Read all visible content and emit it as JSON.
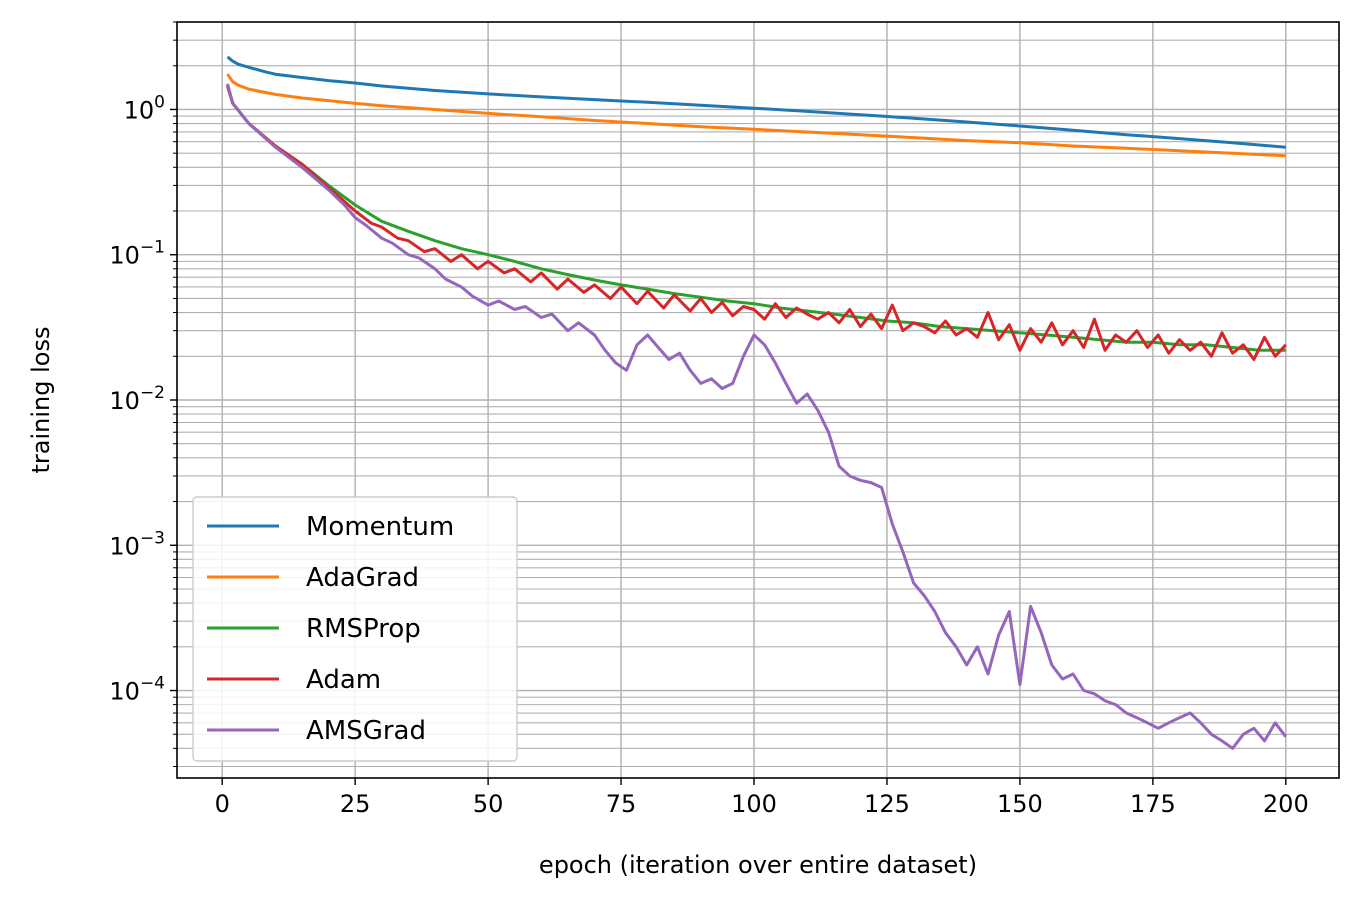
{
  "chart_data": {
    "type": "line",
    "title": "",
    "xlabel": "epoch (iteration over entire dataset)",
    "ylabel": "training loss",
    "xscale": "linear",
    "yscale": "log",
    "xlim": [
      -8.5,
      210
    ],
    "ylim": [
      2.5e-05,
      4.0
    ],
    "xticks": [
      0,
      25,
      50,
      75,
      100,
      125,
      150,
      175,
      200
    ],
    "xtick_labels": [
      "0",
      "25",
      "50",
      "75",
      "100",
      "125",
      "150",
      "175",
      "200"
    ],
    "yticks": [
      0.0001,
      0.001,
      0.01,
      0.1,
      1
    ],
    "ytick_labels": [
      {
        "base": "10",
        "exp": "−4"
      },
      {
        "base": "10",
        "exp": "−3"
      },
      {
        "base": "10",
        "exp": "−2"
      },
      {
        "base": "10",
        "exp": "−1"
      },
      {
        "base": "10",
        "exp": "0"
      }
    ],
    "grid": "major and minor",
    "legend_position": "lower-left",
    "series": [
      {
        "name": "Momentum",
        "color": "#1f77b4",
        "x": [
          1,
          2,
          3,
          5,
          8,
          10,
          15,
          20,
          25,
          30,
          40,
          50,
          60,
          70,
          80,
          90,
          100,
          110,
          120,
          130,
          140,
          150,
          160,
          170,
          180,
          190,
          200
        ],
        "y": [
          2.3,
          2.15,
          2.05,
          1.95,
          1.82,
          1.75,
          1.66,
          1.58,
          1.52,
          1.45,
          1.35,
          1.28,
          1.22,
          1.17,
          1.12,
          1.07,
          1.02,
          0.97,
          0.92,
          0.87,
          0.82,
          0.77,
          0.72,
          0.67,
          0.63,
          0.59,
          0.55
        ]
      },
      {
        "name": "AdaGrad",
        "color": "#ff7f0e",
        "x": [
          1,
          2,
          3,
          5,
          8,
          10,
          15,
          20,
          25,
          30,
          40,
          50,
          60,
          70,
          80,
          90,
          100,
          110,
          120,
          130,
          140,
          150,
          160,
          170,
          180,
          190,
          200
        ],
        "y": [
          1.75,
          1.55,
          1.47,
          1.38,
          1.31,
          1.27,
          1.2,
          1.15,
          1.1,
          1.06,
          1.0,
          0.94,
          0.89,
          0.84,
          0.8,
          0.76,
          0.73,
          0.7,
          0.67,
          0.64,
          0.61,
          0.59,
          0.56,
          0.54,
          0.52,
          0.5,
          0.48
        ]
      },
      {
        "name": "RMSProp",
        "color": "#2ca02c",
        "x": [
          1,
          2,
          5,
          10,
          15,
          20,
          25,
          30,
          35,
          40,
          45,
          50,
          55,
          60,
          65,
          70,
          75,
          80,
          85,
          90,
          95,
          100,
          105,
          110,
          115,
          120,
          125,
          130,
          135,
          140,
          145,
          150,
          155,
          160,
          165,
          170,
          175,
          180,
          185,
          190,
          195,
          200
        ],
        "y": [
          1.45,
          1.1,
          0.8,
          0.56,
          0.42,
          0.3,
          0.22,
          0.17,
          0.145,
          0.125,
          0.11,
          0.1,
          0.09,
          0.08,
          0.073,
          0.067,
          0.062,
          0.058,
          0.054,
          0.051,
          0.048,
          0.046,
          0.043,
          0.041,
          0.039,
          0.037,
          0.035,
          0.034,
          0.032,
          0.031,
          0.03,
          0.029,
          0.028,
          0.027,
          0.026,
          0.025,
          0.025,
          0.024,
          0.024,
          0.023,
          0.022,
          0.022
        ]
      },
      {
        "name": "Adam",
        "color": "#d62728",
        "x": [
          1,
          2,
          5,
          10,
          15,
          20,
          25,
          28,
          30,
          33,
          35,
          38,
          40,
          43,
          45,
          48,
          50,
          53,
          55,
          58,
          60,
          63,
          65,
          68,
          70,
          73,
          75,
          78,
          80,
          83,
          85,
          88,
          90,
          92,
          94,
          96,
          98,
          100,
          102,
          104,
          106,
          108,
          110,
          112,
          114,
          116,
          118,
          120,
          122,
          124,
          126,
          128,
          130,
          132,
          134,
          136,
          138,
          140,
          142,
          144,
          146,
          148,
          150,
          152,
          154,
          156,
          158,
          160,
          162,
          164,
          166,
          168,
          170,
          172,
          174,
          176,
          178,
          180,
          182,
          184,
          186,
          188,
          190,
          192,
          194,
          196,
          198,
          200
        ],
        "y": [
          1.45,
          1.1,
          0.8,
          0.56,
          0.42,
          0.29,
          0.2,
          0.165,
          0.155,
          0.13,
          0.125,
          0.105,
          0.11,
          0.09,
          0.1,
          0.08,
          0.09,
          0.075,
          0.08,
          0.065,
          0.075,
          0.058,
          0.068,
          0.055,
          0.062,
          0.05,
          0.06,
          0.046,
          0.056,
          0.043,
          0.053,
          0.041,
          0.05,
          0.04,
          0.047,
          0.038,
          0.044,
          0.042,
          0.036,
          0.046,
          0.037,
          0.043,
          0.039,
          0.036,
          0.04,
          0.034,
          0.042,
          0.032,
          0.039,
          0.031,
          0.045,
          0.03,
          0.034,
          0.032,
          0.029,
          0.035,
          0.028,
          0.031,
          0.027,
          0.04,
          0.026,
          0.033,
          0.022,
          0.031,
          0.025,
          0.034,
          0.024,
          0.03,
          0.023,
          0.036,
          0.022,
          0.028,
          0.025,
          0.03,
          0.023,
          0.028,
          0.021,
          0.026,
          0.022,
          0.025,
          0.02,
          0.029,
          0.021,
          0.024,
          0.019,
          0.027,
          0.02,
          0.024
        ]
      },
      {
        "name": "AMSGrad",
        "color": "#9467bd",
        "x": [
          1,
          2,
          5,
          10,
          15,
          20,
          23,
          25,
          27,
          30,
          32,
          35,
          37,
          40,
          42,
          45,
          47,
          50,
          52,
          55,
          57,
          60,
          62,
          65,
          67,
          70,
          72,
          74,
          76,
          78,
          80,
          82,
          84,
          86,
          88,
          90,
          92,
          94,
          96,
          98,
          100,
          102,
          104,
          106,
          108,
          110,
          112,
          114,
          116,
          118,
          120,
          122,
          124,
          126,
          128,
          130,
          132,
          134,
          136,
          138,
          140,
          142,
          144,
          146,
          148,
          150,
          152,
          154,
          156,
          158,
          160,
          162,
          164,
          166,
          168,
          170,
          172,
          174,
          176,
          178,
          180,
          182,
          184,
          186,
          188,
          190,
          192,
          194,
          196,
          198,
          200
        ],
        "y": [
          1.5,
          1.1,
          0.8,
          0.55,
          0.4,
          0.28,
          0.22,
          0.18,
          0.16,
          0.13,
          0.12,
          0.1,
          0.095,
          0.08,
          0.068,
          0.06,
          0.052,
          0.045,
          0.048,
          0.042,
          0.044,
          0.037,
          0.039,
          0.03,
          0.034,
          0.028,
          0.022,
          0.018,
          0.016,
          0.024,
          0.028,
          0.023,
          0.019,
          0.021,
          0.016,
          0.013,
          0.014,
          0.012,
          0.013,
          0.02,
          0.028,
          0.024,
          0.018,
          0.013,
          0.0095,
          0.011,
          0.0085,
          0.006,
          0.0035,
          0.003,
          0.0028,
          0.0027,
          0.0025,
          0.0014,
          0.0009,
          0.00055,
          0.00045,
          0.00035,
          0.00025,
          0.0002,
          0.00015,
          0.0002,
          0.00013,
          0.00024,
          0.00035,
          0.00011,
          0.00038,
          0.00025,
          0.00015,
          0.00012,
          0.00013,
          0.0001,
          9.5e-05,
          8.5e-05,
          8e-05,
          7e-05,
          6.5e-05,
          6e-05,
          5.5e-05,
          6e-05,
          6.5e-05,
          7e-05,
          6e-05,
          5e-05,
          4.5e-05,
          4e-05,
          5e-05,
          5.5e-05,
          4.5e-05,
          6e-05,
          4.8e-05
        ]
      }
    ]
  }
}
